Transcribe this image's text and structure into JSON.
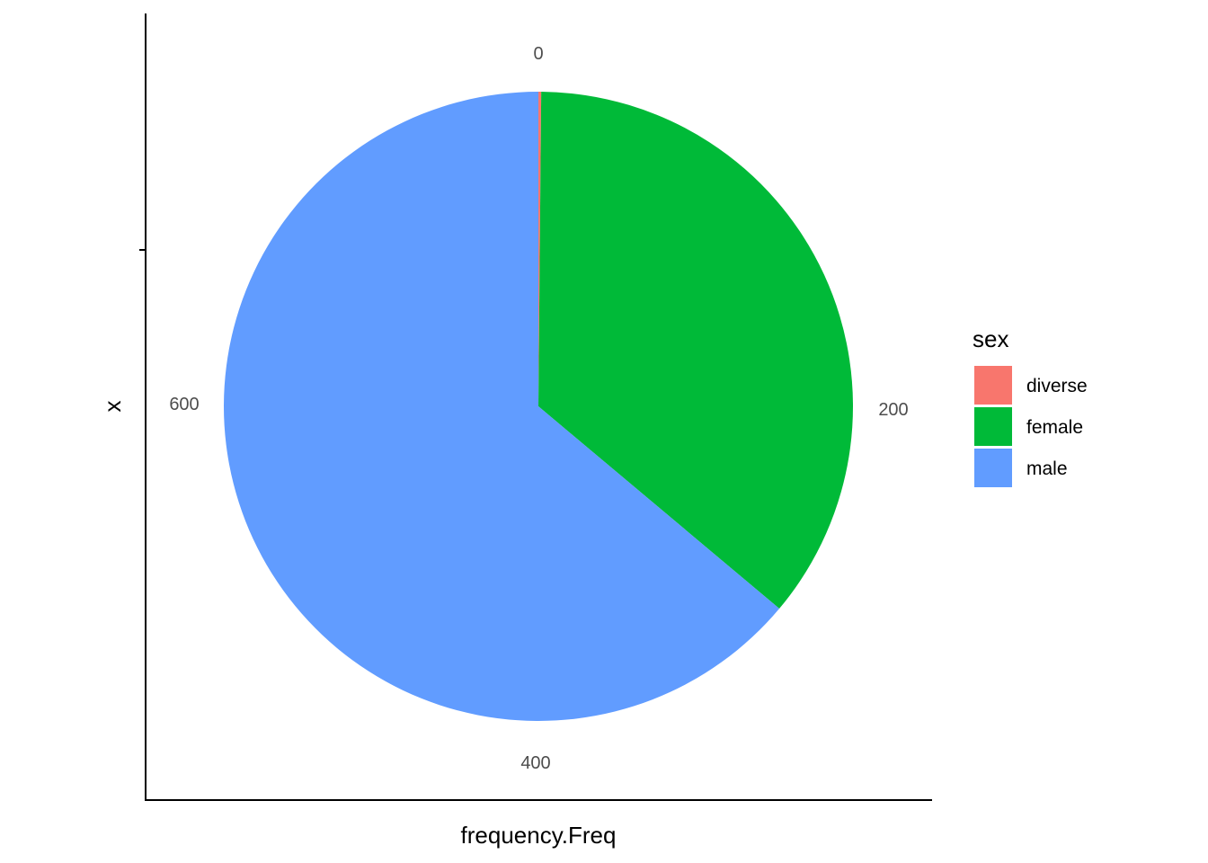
{
  "chart_data": {
    "type": "pie",
    "xlabel": "frequency.Freq",
    "ylabel": "x",
    "theta_ticks": [
      "0",
      "200",
      "400",
      "600"
    ],
    "theta_range": [
      0,
      695
    ],
    "categories": [
      "diverse",
      "female",
      "male"
    ],
    "values": [
      1,
      250,
      444
    ],
    "colors": [
      "#F8766D",
      "#00BA38",
      "#619CFF"
    ],
    "legend": {
      "title": "sex",
      "placement": "right",
      "entries": [
        "diverse",
        "female",
        "male"
      ]
    },
    "grid": false
  }
}
